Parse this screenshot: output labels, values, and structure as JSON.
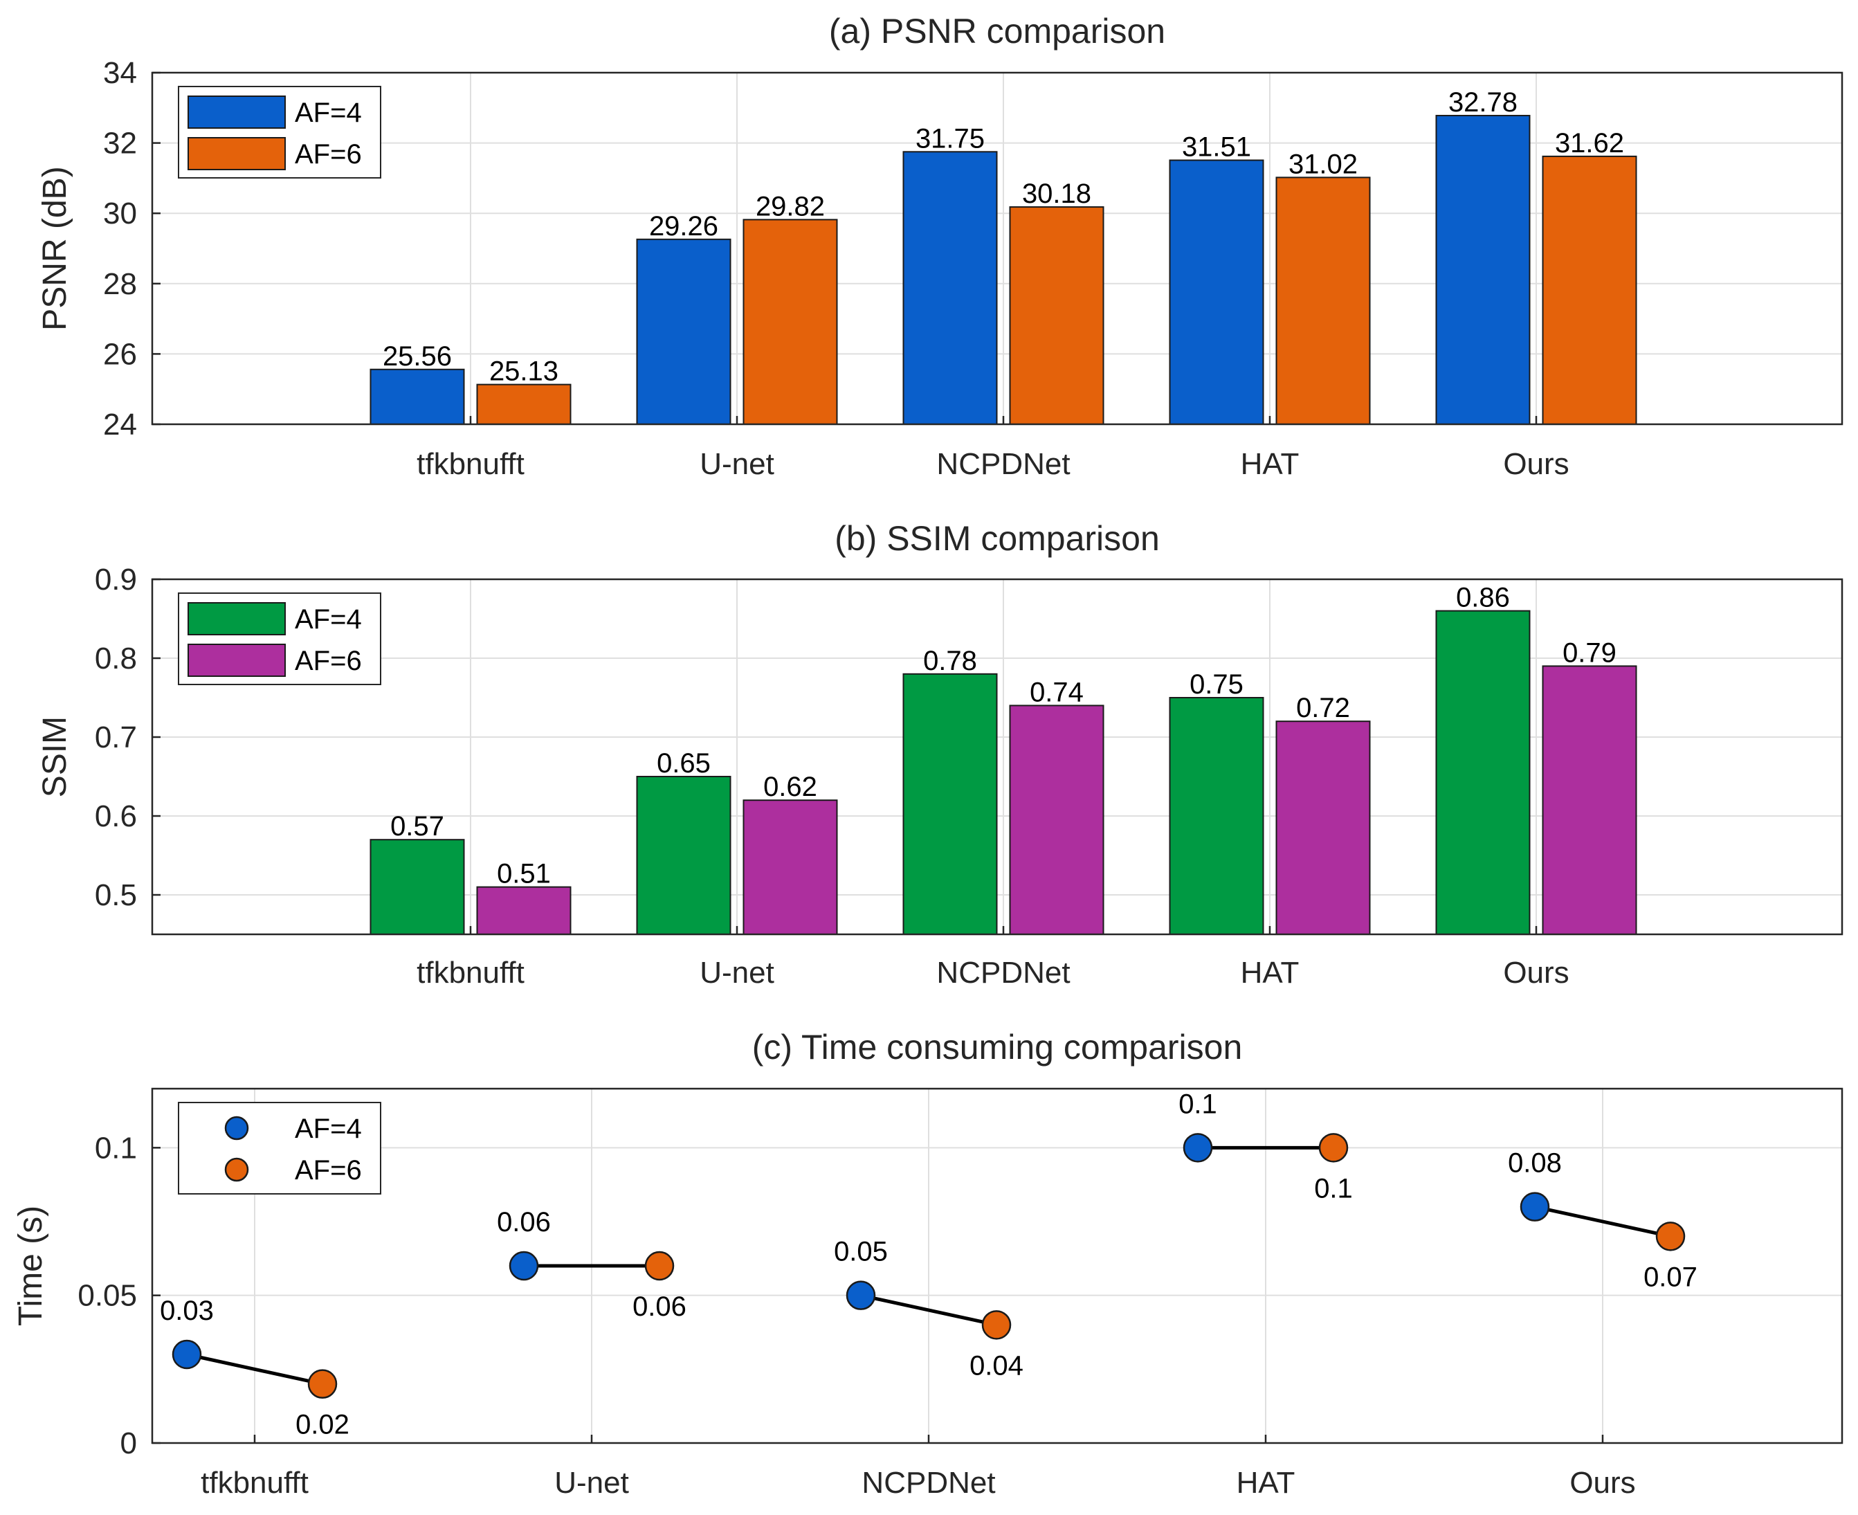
{
  "chart_data": [
    {
      "type": "bar",
      "title": "(a) PSNR comparison",
      "xlabel": "",
      "ylabel": "PSNR (dB)",
      "ylim": [
        24,
        34
      ],
      "yticks": [
        24,
        26,
        28,
        30,
        32,
        34
      ],
      "grid": true,
      "legend": "top-left",
      "categories": [
        "tfkbnufft",
        "U-net",
        "NCPDNet",
        "HAT",
        "Ours"
      ],
      "series": [
        {
          "name": "AF=4",
          "color": "#0a5fcb",
          "values": [
            25.56,
            29.26,
            31.75,
            31.51,
            32.78
          ]
        },
        {
          "name": "AF=6",
          "color": "#e4620b",
          "values": [
            25.13,
            29.82,
            30.18,
            31.02,
            31.62
          ]
        }
      ],
      "labels": [
        [
          "25.56",
          "29.26",
          "31.75",
          "31.51",
          "32.78"
        ],
        [
          "25.13",
          "29.82",
          "30.18",
          "31.02",
          "31.62"
        ]
      ]
    },
    {
      "type": "bar",
      "title": "(b) SSIM comparison",
      "xlabel": "",
      "ylabel": "SSIM",
      "ylim": [
        0.45,
        0.9
      ],
      "yticks": [
        0.5,
        0.6,
        0.7,
        0.8,
        0.9
      ],
      "grid": true,
      "legend": "top-left",
      "categories": [
        "tfkbnufft",
        "U-net",
        "NCPDNet",
        "HAT",
        "Ours"
      ],
      "series": [
        {
          "name": "AF=4",
          "color": "#009a43",
          "values": [
            0.57,
            0.65,
            0.78,
            0.75,
            0.86
          ]
        },
        {
          "name": "AF=6",
          "color": "#ad2f9e",
          "values": [
            0.51,
            0.62,
            0.74,
            0.72,
            0.79
          ]
        }
      ],
      "labels": [
        [
          "0.57",
          "0.65",
          "0.78",
          "0.75",
          "0.86"
        ],
        [
          "0.51",
          "0.62",
          "0.74",
          "0.72",
          "0.79"
        ]
      ]
    },
    {
      "type": "scatter",
      "title": "(c) Time consuming comparison",
      "xlabel": "",
      "ylabel": "Time (s)",
      "ylim": [
        0,
        0.12
      ],
      "yticks": [
        0,
        0.05,
        0.1
      ],
      "grid": true,
      "legend": "top-left",
      "connect_pairs": true,
      "categories": [
        "tfkbnufft",
        "U-net",
        "NCPDNet",
        "HAT",
        "Ours"
      ],
      "series": [
        {
          "name": "AF=4",
          "color": "#0a5fcb",
          "values": [
            0.03,
            0.06,
            0.05,
            0.1,
            0.08
          ]
        },
        {
          "name": "AF=6",
          "color": "#e4620b",
          "values": [
            0.02,
            0.06,
            0.04,
            0.1,
            0.07
          ]
        }
      ],
      "labels": [
        [
          "0.03",
          "0.06",
          "0.05",
          "0.1",
          "0.08"
        ],
        [
          "0.02",
          "0.06",
          "0.04",
          "0.1",
          "0.07"
        ]
      ]
    }
  ]
}
